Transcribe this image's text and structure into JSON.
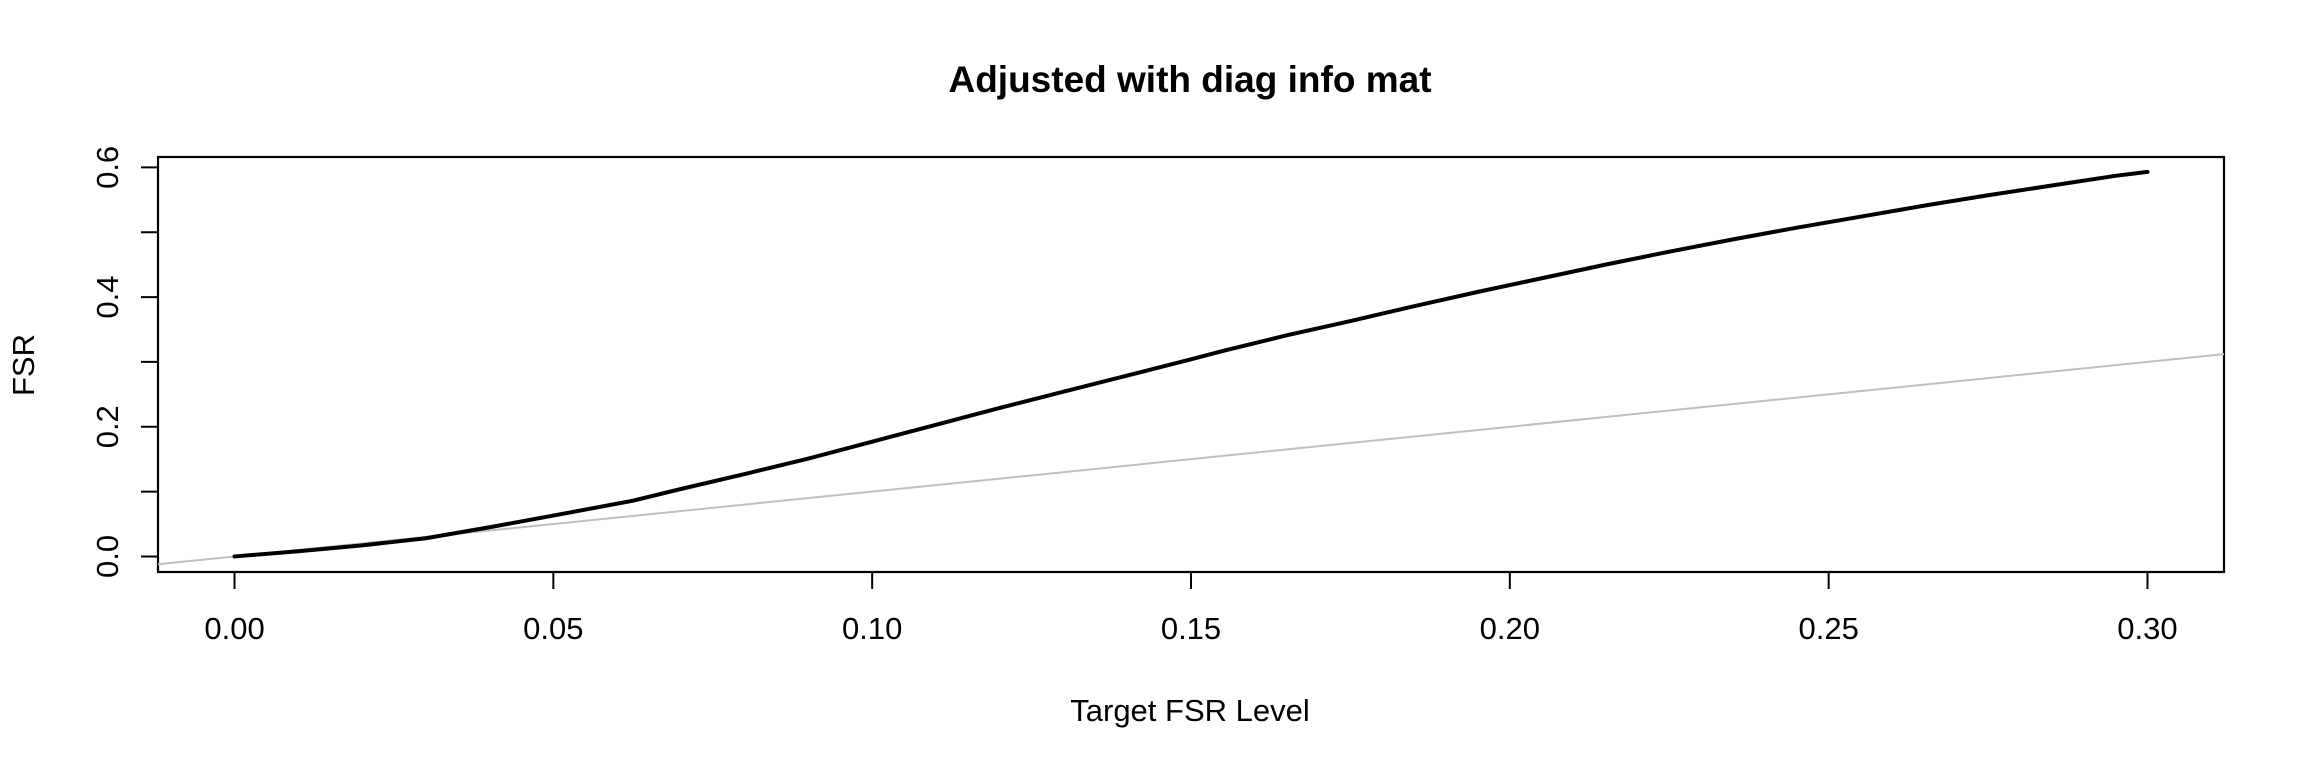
{
  "chart_data": {
    "type": "line",
    "title": "Adjusted with diag info mat",
    "xlabel": "Target FSR Level",
    "ylabel": "FSR",
    "xlim": [
      -0.012,
      0.312
    ],
    "ylim": [
      -0.024,
      0.616
    ],
    "x_ticks": [
      0.0,
      0.05,
      0.1,
      0.15,
      0.2,
      0.25,
      0.3
    ],
    "x_tick_labels": [
      "0.00",
      "0.05",
      "0.10",
      "0.15",
      "0.20",
      "0.25",
      "0.30"
    ],
    "y_ticks": [
      0.0,
      0.1,
      0.2,
      0.3,
      0.4,
      0.5,
      0.6
    ],
    "y_tick_labels": [
      "0.0",
      "",
      "0.2",
      "",
      "0.4",
      "",
      "0.6"
    ],
    "grid": false,
    "series": [
      {
        "color": "#000000",
        "x": [
          0.0,
          0.01,
          0.02,
          0.03,
          0.04,
          0.05,
          0.0625,
          0.07,
          0.08,
          0.09,
          0.1,
          0.11,
          0.12,
          0.13,
          0.14,
          0.15,
          0.155,
          0.165,
          0.175,
          0.185,
          0.195,
          0.205,
          0.215,
          0.225,
          0.235,
          0.245,
          0.255,
          0.265,
          0.275,
          0.285,
          0.295,
          0.3
        ],
        "y": [
          0.0,
          0.008,
          0.017,
          0.028,
          0.045,
          0.063,
          0.086,
          0.104,
          0.127,
          0.151,
          0.177,
          0.203,
          0.229,
          0.254,
          0.279,
          0.304,
          0.317,
          0.341,
          0.363,
          0.386,
          0.408,
          0.429,
          0.45,
          0.47,
          0.489,
          0.507,
          0.524,
          0.541,
          0.557,
          0.572,
          0.587,
          0.593
        ]
      },
      {
        "color": "#bebebe",
        "x": [
          -0.012,
          0.312
        ],
        "y": [
          -0.012,
          0.312
        ]
      }
    ]
  }
}
